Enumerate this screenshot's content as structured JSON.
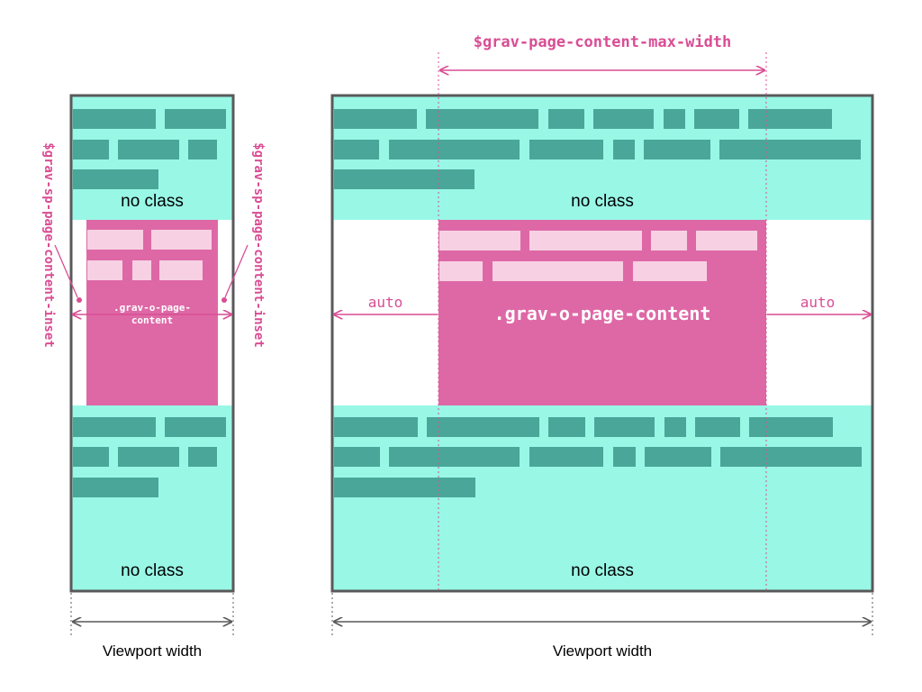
{
  "colors": {
    "frame": "#595959",
    "teal_bg": "#99f7e6",
    "teal_block": "#4aa699",
    "pink_bg": "#de68a6",
    "pink_block": "#f7d1e3",
    "accent": "#d94d94",
    "dimension": "#595959"
  },
  "narrow": {
    "top_section_label": "no class",
    "content_label_line1": ".grav-o-page-",
    "content_label_line2": "content",
    "bottom_section_label": "no class",
    "left_inset_label": "$grav-sp-page-content-inset",
    "right_inset_label": "$grav-sp-page-content-inset",
    "width_label": "Viewport width"
  },
  "wide": {
    "max_width_label": "$grav-page-content-max-width",
    "top_section_label": "no class",
    "content_label": ".grav-o-page-content",
    "left_margin_label": "auto",
    "right_margin_label": "auto",
    "bottom_section_label": "no class",
    "width_label": "Viewport width"
  }
}
